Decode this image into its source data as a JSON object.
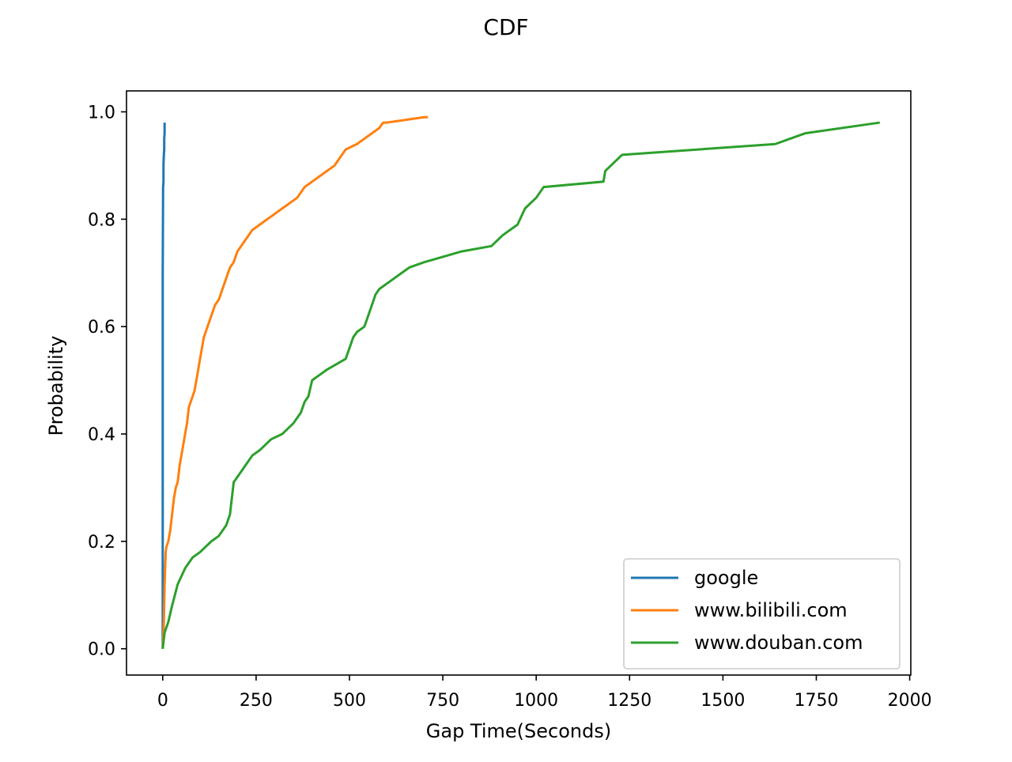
{
  "chart_data": {
    "type": "line",
    "title": "CDF",
    "xlabel": "Gap Time(Seconds)",
    "ylabel": "Probability",
    "xlim": [
      -97,
      2003
    ],
    "ylim": [
      -0.049,
      1.039
    ],
    "xticks": [
      0,
      250,
      500,
      750,
      1000,
      1250,
      1500,
      1750,
      2000
    ],
    "xtick_labels": [
      "0",
      "250",
      "500",
      "750",
      "1000",
      "1250",
      "1500",
      "1750",
      "2000"
    ],
    "yticks": [
      0.0,
      0.2,
      0.4,
      0.6,
      0.8,
      1.0
    ],
    "ytick_labels": [
      "0.0",
      "0.2",
      "0.4",
      "0.6",
      "0.8",
      "1.0"
    ],
    "grid": false,
    "legend_position": "lower-right",
    "series": [
      {
        "name": "google",
        "color": "#1f77b4",
        "x": [
          0,
          0,
          0,
          0,
          0,
          1,
          2,
          2,
          3,
          4,
          4,
          5,
          5
        ],
        "y": [
          0.0,
          0.1,
          0.3,
          0.5,
          0.7,
          0.86,
          0.87,
          0.9,
          0.92,
          0.93,
          0.95,
          0.96,
          0.98
        ]
      },
      {
        "name": "www.bilibili.com",
        "color": "#ff7f0e",
        "x": [
          0,
          3,
          5,
          8,
          10,
          15,
          20,
          25,
          30,
          35,
          40,
          45,
          50,
          55,
          60,
          65,
          70,
          75,
          80,
          85,
          90,
          95,
          100,
          105,
          110,
          115,
          120,
          125,
          130,
          140,
          150,
          160,
          170,
          180,
          190,
          200,
          210,
          220,
          240,
          260,
          280,
          300,
          320,
          340,
          360,
          370,
          380,
          400,
          420,
          440,
          460,
          470,
          480,
          490,
          520,
          540,
          580,
          590,
          600,
          700,
          710
        ],
        "y": [
          0.0,
          0.05,
          0.12,
          0.18,
          0.19,
          0.2,
          0.22,
          0.25,
          0.28,
          0.3,
          0.31,
          0.34,
          0.36,
          0.38,
          0.4,
          0.42,
          0.45,
          0.46,
          0.47,
          0.48,
          0.5,
          0.52,
          0.54,
          0.56,
          0.58,
          0.59,
          0.6,
          0.61,
          0.62,
          0.64,
          0.65,
          0.67,
          0.69,
          0.71,
          0.72,
          0.74,
          0.75,
          0.76,
          0.78,
          0.79,
          0.8,
          0.81,
          0.82,
          0.83,
          0.84,
          0.85,
          0.86,
          0.87,
          0.88,
          0.89,
          0.9,
          0.91,
          0.92,
          0.93,
          0.94,
          0.95,
          0.97,
          0.98,
          0.98,
          0.99,
          0.99
        ],
        "step_mode": false
      },
      {
        "name": "www.douban.com",
        "color": "#2ca02c",
        "x": [
          0,
          5,
          15,
          25,
          40,
          60,
          80,
          100,
          130,
          150,
          170,
          180,
          185,
          190,
          200,
          220,
          240,
          260,
          290,
          320,
          350,
          370,
          380,
          390,
          400,
          420,
          440,
          490,
          500,
          510,
          520,
          540,
          550,
          560,
          570,
          580,
          600,
          620,
          640,
          660,
          700,
          750,
          800,
          880,
          910,
          950,
          970,
          1000,
          1020,
          1180,
          1185,
          1200,
          1230,
          1640,
          1720,
          1920
        ],
        "y": [
          0.0,
          0.03,
          0.05,
          0.08,
          0.12,
          0.15,
          0.17,
          0.18,
          0.2,
          0.21,
          0.23,
          0.25,
          0.28,
          0.31,
          0.32,
          0.34,
          0.36,
          0.37,
          0.39,
          0.4,
          0.42,
          0.44,
          0.46,
          0.47,
          0.5,
          0.51,
          0.52,
          0.54,
          0.56,
          0.58,
          0.59,
          0.6,
          0.62,
          0.64,
          0.66,
          0.67,
          0.68,
          0.69,
          0.7,
          0.71,
          0.72,
          0.73,
          0.74,
          0.75,
          0.77,
          0.79,
          0.82,
          0.84,
          0.86,
          0.87,
          0.89,
          0.9,
          0.92,
          0.94,
          0.96,
          0.98
        ]
      }
    ]
  }
}
